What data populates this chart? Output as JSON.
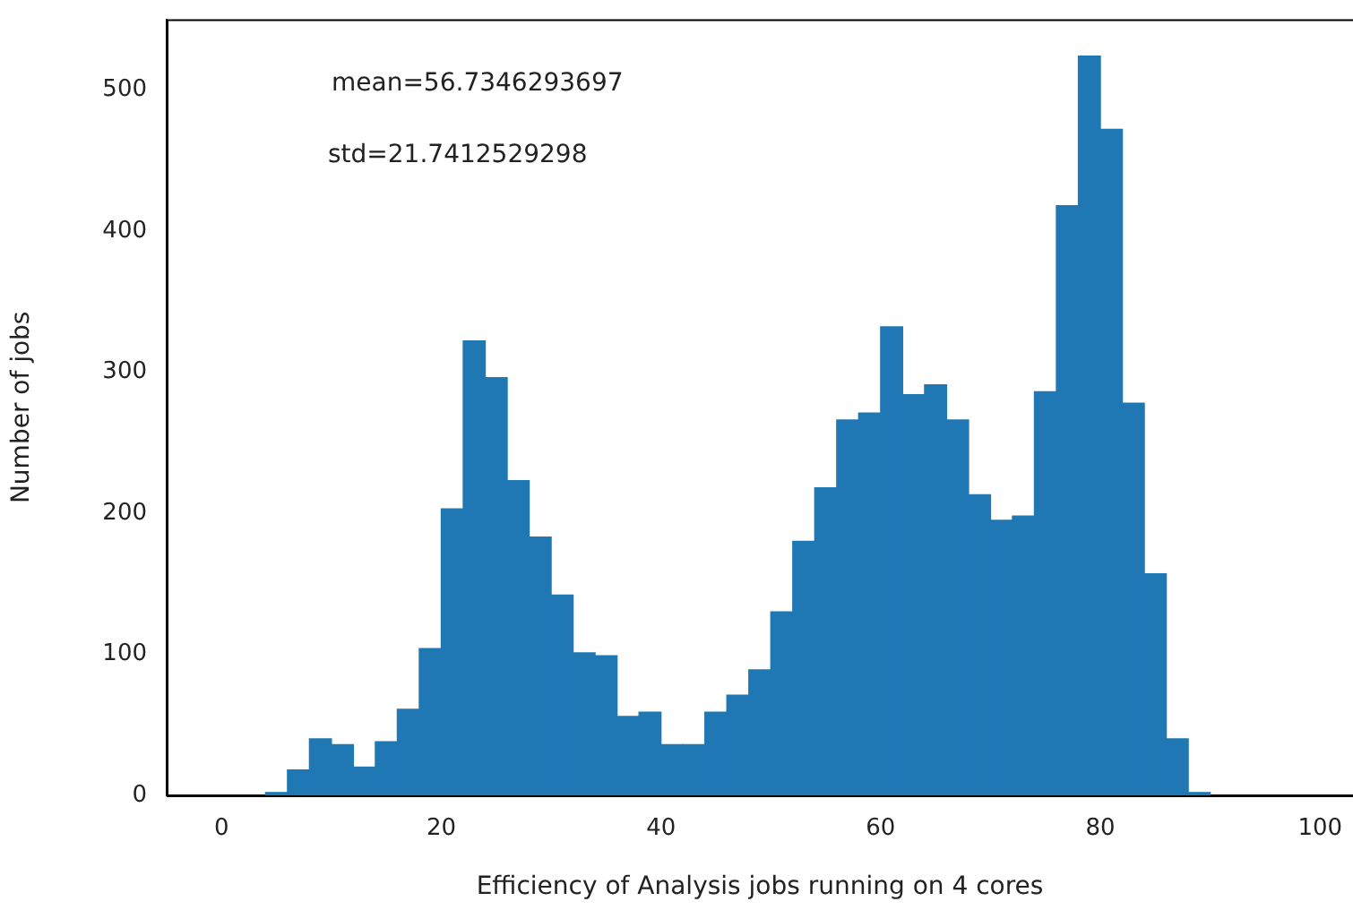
{
  "chart_data": {
    "type": "histogram",
    "xlabel": "Efficiency of Analysis jobs running on 4 cores",
    "ylabel": "Number of jobs",
    "annotations": [
      "mean=56.7346293697",
      "std=21.7412529298"
    ],
    "bins": [
      4,
      6,
      8,
      10,
      12,
      14,
      16,
      18,
      20,
      22,
      24,
      26,
      28,
      30,
      32,
      34,
      36,
      38,
      40,
      42,
      44,
      46,
      48,
      50,
      52,
      54,
      56,
      58,
      60,
      62,
      64,
      66,
      68,
      70,
      72,
      74,
      76,
      78,
      80,
      82,
      84,
      86,
      88,
      90
    ],
    "values": [
      2,
      18,
      40,
      36,
      20,
      38,
      61,
      104,
      203,
      322,
      296,
      223,
      183,
      142,
      101,
      99,
      56,
      59,
      36,
      36,
      59,
      71,
      89,
      130,
      180,
      218,
      266,
      271,
      332,
      284,
      291,
      266,
      213,
      195,
      198,
      286,
      418,
      524,
      472,
      278,
      157,
      40,
      2
    ],
    "color": "#1f77b4",
    "xlim": [
      -5,
      103
    ],
    "ylim": [
      0,
      550
    ],
    "xticks": [
      0,
      20,
      40,
      60,
      80,
      100
    ],
    "yticks": [
      0,
      100,
      200,
      300,
      400,
      500
    ]
  }
}
